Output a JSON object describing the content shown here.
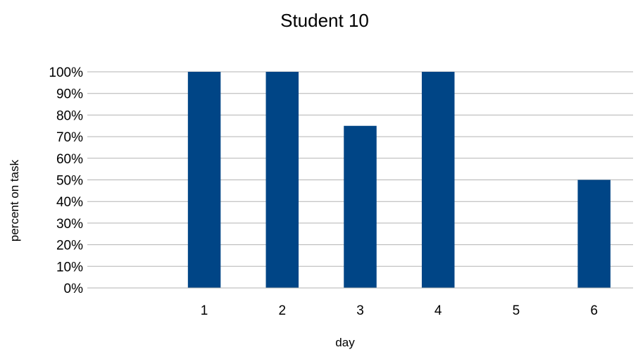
{
  "chart_data": {
    "type": "bar",
    "title": "Student 10",
    "xlabel": "day",
    "ylabel": "percent on task",
    "categories": [
      "",
      "1",
      "2",
      "3",
      "4",
      "5",
      "6"
    ],
    "values": [
      null,
      100,
      100,
      75,
      100,
      0,
      50
    ],
    "ylim": [
      0,
      100
    ],
    "yticks": [
      0,
      10,
      20,
      30,
      40,
      50,
      60,
      70,
      80,
      90,
      100
    ],
    "ytick_suffix": "%",
    "grid": true,
    "legend": "none",
    "bar_color": "#004586"
  }
}
